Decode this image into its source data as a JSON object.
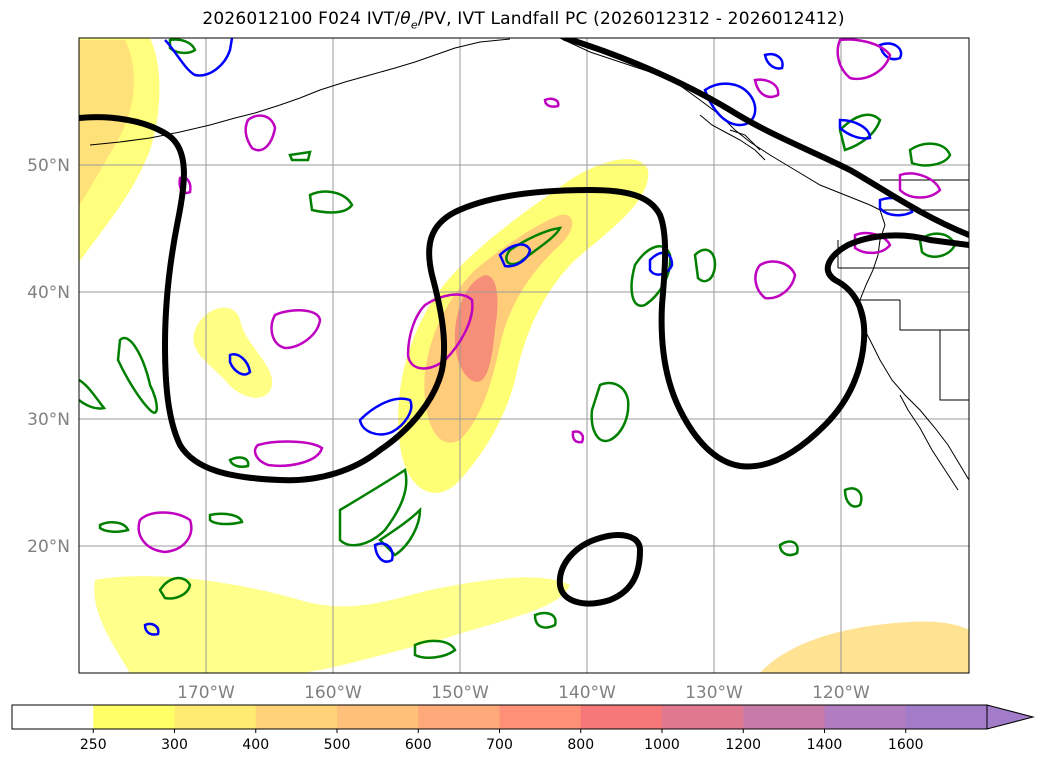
{
  "title": {
    "prefix": "2026012100 F024 IVT/",
    "theta": "θ",
    "theta_sub": "e",
    "suffix": "/PV, IVT Landfall PC (2026012312 - 2026012412)"
  },
  "map": {
    "lon_range": [
      -180,
      -110
    ],
    "lat_range": [
      10,
      60
    ],
    "lat_labels": [
      {
        "lat": 50,
        "label": "50°N"
      },
      {
        "lat": 40,
        "label": "40°N"
      },
      {
        "lat": 30,
        "label": "30°N"
      },
      {
        "lat": 20,
        "label": "20°N"
      }
    ],
    "lon_labels": [
      {
        "lon": -170,
        "label": "170°W"
      },
      {
        "lon": -160,
        "label": "160°W"
      },
      {
        "lon": -150,
        "label": "150°W"
      },
      {
        "lon": -140,
        "label": "140°W"
      },
      {
        "lon": -130,
        "label": "130°W"
      },
      {
        "lon": -120,
        "label": "120°W"
      }
    ],
    "contour_colors": {
      "pc": "#000000",
      "theta_e": "#008000",
      "pv_blue": "#0000ff",
      "pv_magenta": "#c000c0",
      "coast": "#000000"
    }
  },
  "colorbar": {
    "ticks": [
      "250",
      "300",
      "400",
      "500",
      "600",
      "700",
      "800",
      "1000",
      "1200",
      "1400",
      "1600"
    ],
    "colors": [
      "#ffff66",
      "#ffeb70",
      "#ffd278",
      "#ffc07a",
      "#ffa87a",
      "#ff9078",
      "#f77878",
      "#e07890",
      "#c87aa8",
      "#b27cc0",
      "#a27cc8"
    ],
    "extend": "max"
  }
}
